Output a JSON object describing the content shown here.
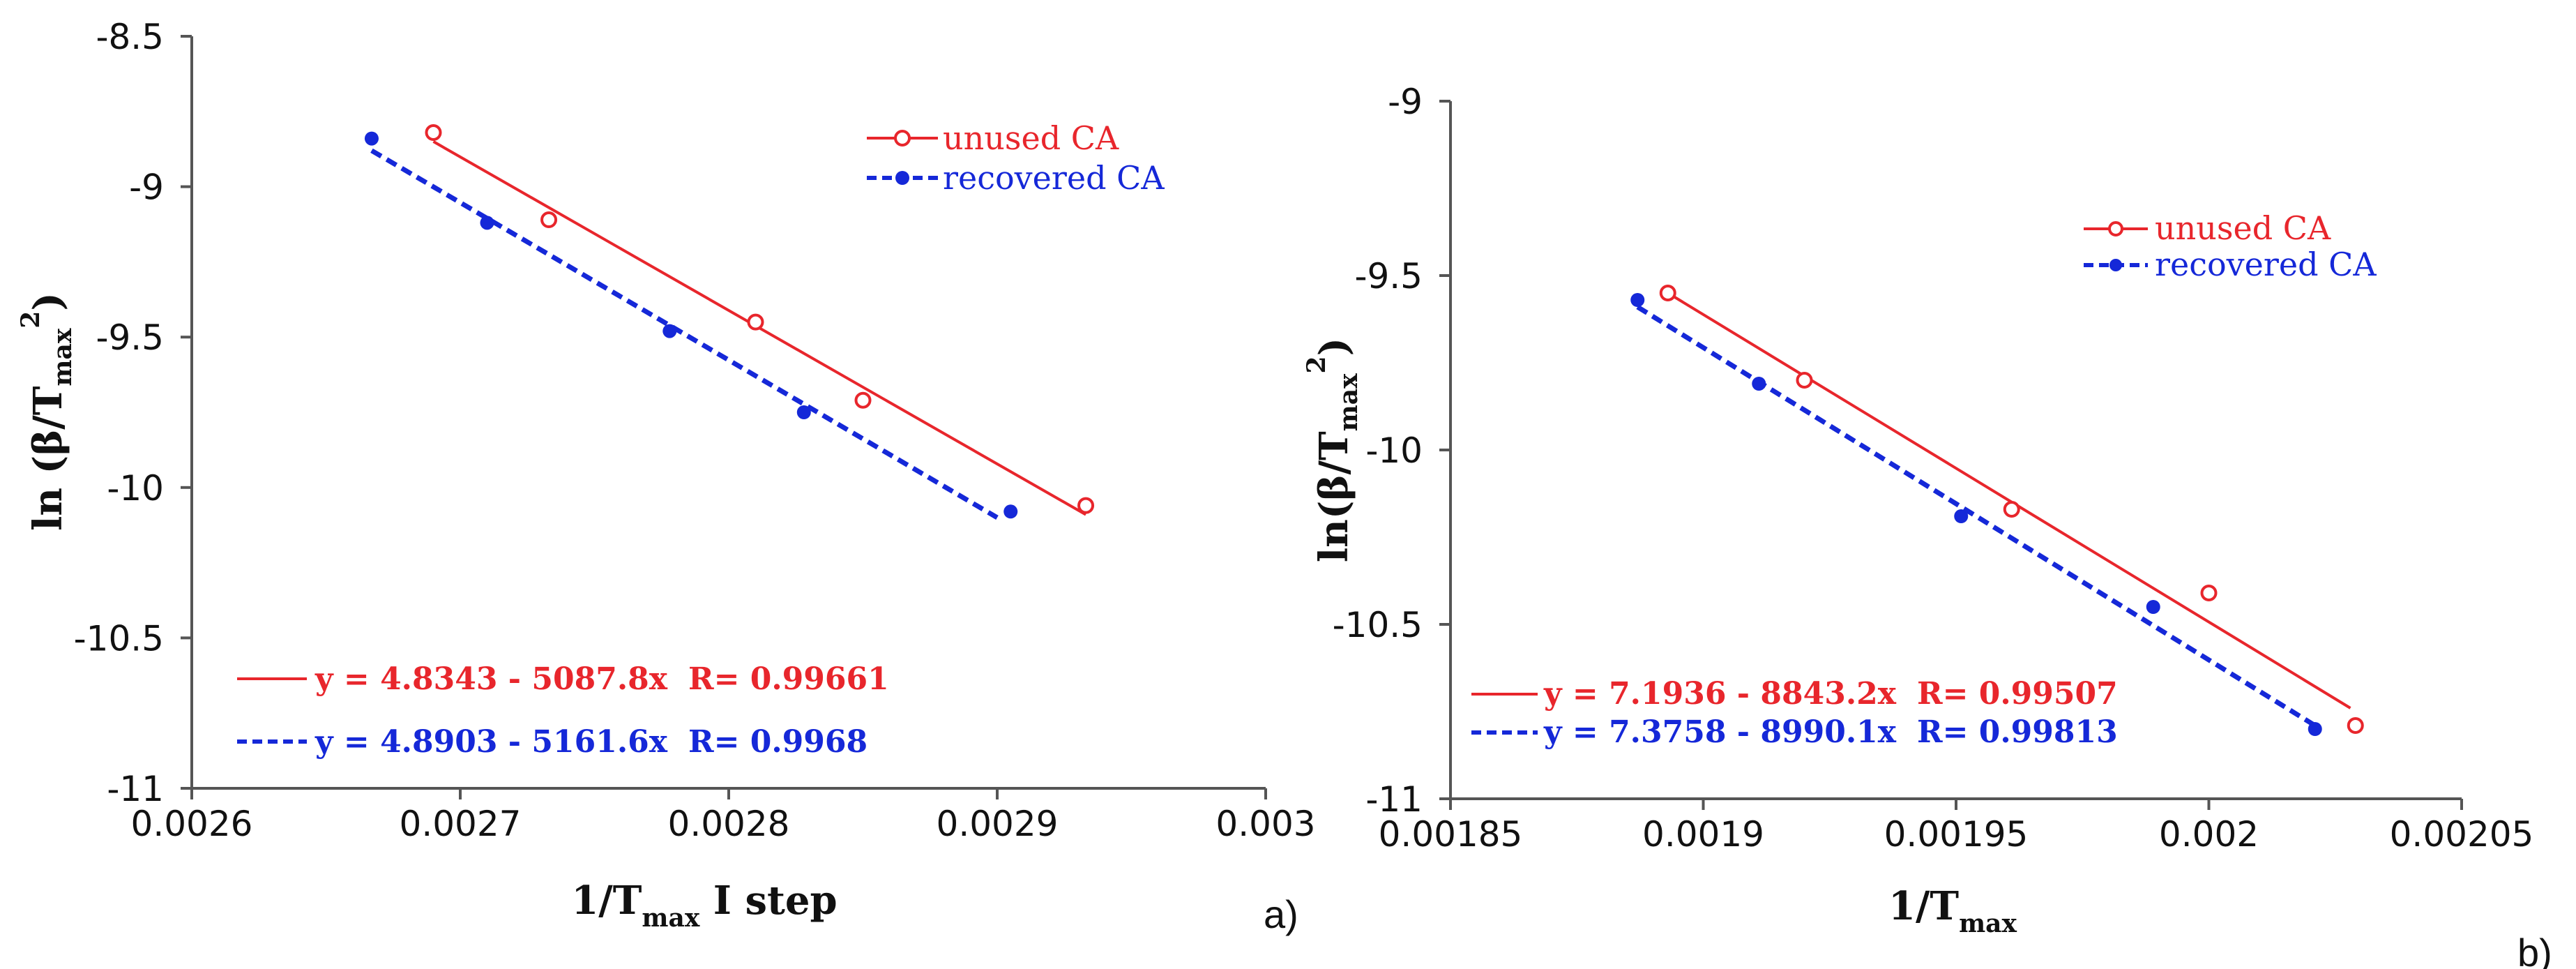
{
  "chart_data": [
    {
      "type": "scatter",
      "panel_label": "a)",
      "xlabel": "1/T",
      "xlabel_sub": "max",
      "xlabel_suffix": " I step",
      "ylabel": "ln (β/T",
      "ylabel_sub": "max",
      "ylabel_sup": "2",
      "ylabel_close": ")",
      "xlim": [
        0.0026,
        0.003
      ],
      "ylim": [
        -11,
        -8.5
      ],
      "x_ticks": [
        0.0026,
        0.0027,
        0.0028,
        0.0029,
        0.003
      ],
      "x_tick_labels": [
        "0.0026",
        "0.0027",
        "0.0028",
        "0.0029",
        "0.003"
      ],
      "y_ticks": [
        -11,
        -10.5,
        -10,
        -9.5,
        -9,
        -8.5
      ],
      "y_tick_labels": [
        "-11",
        "-10.5",
        "-10",
        "-9.5",
        "-9",
        "-8.5"
      ],
      "grid": false,
      "legend_position": "top-right",
      "series": [
        {
          "name": "unused CA",
          "color": "#e8262c",
          "marker": "open-circle",
          "line_style": "solid",
          "x": [
            0.00269,
            0.002733,
            0.00281,
            0.00285,
            0.002933
          ],
          "y": [
            -8.82,
            -9.11,
            -9.45,
            -9.71,
            -10.06
          ],
          "fit": {
            "x": [
              0.00269,
              0.002933
            ],
            "y": [
              -8.85,
              -10.09
            ]
          },
          "equation": "y = 4.8343 - 5087.8x",
          "r_value": "R= 0.99661"
        },
        {
          "name": "recovered CA",
          "color": "#1528d8",
          "marker": "filled-circle",
          "line_style": "dashed",
          "x": [
            0.002667,
            0.00271,
            0.002778,
            0.002828,
            0.002905
          ],
          "y": [
            -8.84,
            -9.12,
            -9.48,
            -9.75,
            -10.08
          ],
          "fit": {
            "x": [
              0.002667,
              0.0029
            ],
            "y": [
              -8.88,
              -10.1
            ]
          },
          "equation": "y = 4.8903 - 5161.6x",
          "r_value": "R= 0.9968"
        }
      ]
    },
    {
      "type": "scatter",
      "panel_label": "b)",
      "xlabel": "1/T",
      "xlabel_sub": "max",
      "xlabel_suffix": "",
      "ylabel": "ln(β/T",
      "ylabel_sub": "max",
      "ylabel_sup": "2",
      "ylabel_close": ")",
      "xlim": [
        0.00185,
        0.00205
      ],
      "ylim": [
        -11,
        -9
      ],
      "x_ticks": [
        0.00185,
        0.0019,
        0.00195,
        0.002,
        0.00205
      ],
      "x_tick_labels": [
        "0.00185",
        "0.0019",
        "0.00195",
        "0.002",
        "0.00205"
      ],
      "y_ticks": [
        -11,
        -10.5,
        -10,
        -9.5,
        -9
      ],
      "y_tick_labels": [
        "-11",
        "-10.5",
        "-10",
        "-9.5",
        "-9"
      ],
      "grid": false,
      "legend_position": "top-right",
      "series": [
        {
          "name": "unused CA",
          "color": "#e8262c",
          "marker": "open-circle",
          "line_style": "solid",
          "x": [
            0.001893,
            0.00192,
            0.001961,
            0.002,
            0.002029
          ],
          "y": [
            -9.55,
            -9.8,
            -10.17,
            -10.41,
            -10.79
          ],
          "fit": {
            "x": [
              0.001893,
              0.002028
            ],
            "y": [
              -9.55,
              -10.74
            ]
          },
          "equation": "y = 7.1936 - 8843.2x",
          "r_value": "R= 0.99507"
        },
        {
          "name": "recovered CA",
          "color": "#1528d8",
          "marker": "filled-circle",
          "line_style": "dashed",
          "x": [
            0.001887,
            0.001911,
            0.001951,
            0.001989,
            0.002021
          ],
          "y": [
            -9.57,
            -9.81,
            -10.19,
            -10.45,
            -10.8
          ],
          "fit": {
            "x": [
              0.001887,
              0.002021
            ],
            "y": [
              -9.59,
              -10.79
            ]
          },
          "equation": "y = 7.3758 - 8990.1x",
          "r_value": "R= 0.99813"
        }
      ]
    }
  ]
}
